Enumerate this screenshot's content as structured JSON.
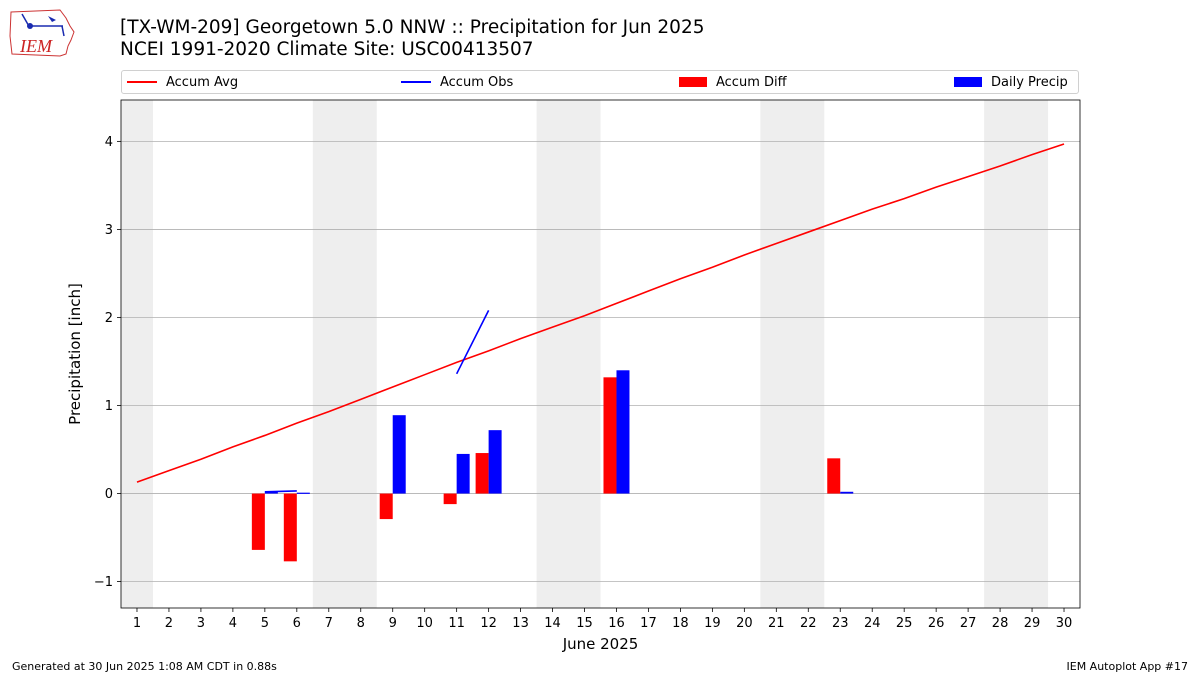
{
  "header": {
    "title_line1": "[TX-WM-209] Georgetown 5.0 NNW :: Precipitation for Jun 2025",
    "title_line2": "NCEI 1991-2020 Climate Site: USC00413507",
    "logo_text": "IEM"
  },
  "footer": {
    "left": "Generated at 30 Jun 2025 1:08 AM CDT in 0.88s",
    "right": "IEM Autoplot App #17"
  },
  "colors": {
    "avg": "#ff0000",
    "obs": "#0000ff",
    "diff": "#ff0000",
    "daily": "#0000ff",
    "weekend_band": "#eeeeee",
    "grid": "#b0b0b0"
  },
  "chart_data": {
    "type": "bar",
    "title": "[TX-WM-209] Georgetown 5.0 NNW :: Precipitation for Jun 2025",
    "xlabel": "June 2025",
    "ylabel": "Precipitation [inch]",
    "ylim": [
      -1.3,
      4.47
    ],
    "xlim": [
      0.5,
      30.5
    ],
    "yticks": [
      -1,
      0,
      1,
      2,
      3,
      4
    ],
    "ytick_labels": [
      "−1",
      "0",
      "1",
      "2",
      "3",
      "4"
    ],
    "x": [
      1,
      2,
      3,
      4,
      5,
      6,
      7,
      8,
      9,
      10,
      11,
      12,
      13,
      14,
      15,
      16,
      17,
      18,
      19,
      20,
      21,
      22,
      23,
      24,
      25,
      26,
      27,
      28,
      29,
      30
    ],
    "weekend_bands": [
      [
        0.5,
        1.5
      ],
      [
        6.5,
        8.5
      ],
      [
        13.5,
        15.5
      ],
      [
        20.5,
        22.5
      ],
      [
        27.5,
        29.5
      ]
    ],
    "grid": "y",
    "legend_position": "top",
    "series": [
      {
        "name": "Accum Avg",
        "type": "line",
        "values": [
          0.13,
          0.26,
          0.39,
          0.53,
          0.66,
          0.8,
          0.93,
          1.07,
          1.21,
          1.35,
          1.49,
          1.62,
          1.76,
          1.89,
          2.02,
          2.16,
          2.3,
          2.44,
          2.57,
          2.71,
          2.84,
          2.97,
          3.1,
          3.23,
          3.35,
          3.48,
          3.6,
          3.72,
          3.85,
          3.97
        ]
      },
      {
        "name": "Accum Obs",
        "type": "line",
        "segments": [
          {
            "x": [
              5,
              6
            ],
            "values": [
              0.02,
              0.03
            ]
          },
          {
            "x": [
              11,
              12
            ],
            "values": [
              1.36,
              2.08
            ]
          }
        ]
      },
      {
        "name": "Accum Diff",
        "type": "bar",
        "x": [
          5,
          6,
          9,
          11,
          12,
          16,
          23
        ],
        "values": [
          -0.64,
          -0.77,
          -0.29,
          -0.12,
          0.46,
          1.32,
          0.4
        ]
      },
      {
        "name": "Daily Precip",
        "type": "bar",
        "x": [
          5,
          6,
          9,
          11,
          12,
          16,
          23
        ],
        "values": [
          0.02,
          0.01,
          0.89,
          0.45,
          0.72,
          1.4,
          0.02
        ]
      }
    ]
  }
}
